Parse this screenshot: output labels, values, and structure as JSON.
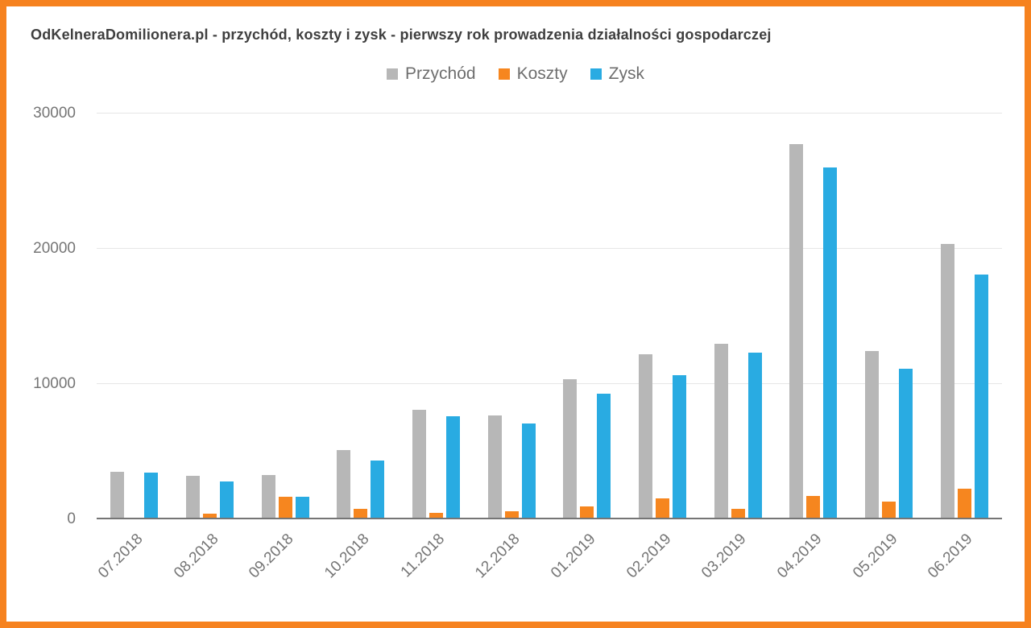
{
  "colors": {
    "border": "#f6821f",
    "background": "#ffffff",
    "grid": "#e6e6e6",
    "axis_line": "#757575",
    "tick_text": "#757575",
    "legend_text": "#6e6e6e",
    "title_text": "#3f3f3f"
  },
  "chart_data": {
    "type": "bar",
    "title": "OdKelneraDomilionera.pl - przychód, koszty i zysk - pierwszy rok prowadzenia działalności gospodarczej",
    "categories": [
      "07.2018",
      "08.2018",
      "09.2018",
      "10.2018",
      "11.2018",
      "12.2018",
      "01.2019",
      "02.2019",
      "03.2019",
      "04.2019",
      "05.2019",
      "06.2019"
    ],
    "series": [
      {
        "name": "Przychód",
        "color": "#b7b7b7",
        "values": [
          3500,
          3200,
          3300,
          5100,
          8100,
          7650,
          10350,
          12200,
          13000,
          27750,
          12450,
          20350
        ]
      },
      {
        "name": "Koszty",
        "color": "#f6861f",
        "values": [
          120,
          400,
          1650,
          780,
          470,
          580,
          980,
          1550,
          750,
          1700,
          1300,
          2250
        ]
      },
      {
        "name": "Zysk",
        "color": "#29abe2",
        "values": [
          3450,
          2800,
          1650,
          4350,
          7600,
          7100,
          9300,
          10650,
          12300,
          26000,
          11150,
          18100
        ]
      }
    ],
    "ylim": [
      0,
      30000
    ],
    "yticks": [
      0,
      10000,
      20000,
      30000
    ],
    "grid": true,
    "legend_position": "top"
  }
}
